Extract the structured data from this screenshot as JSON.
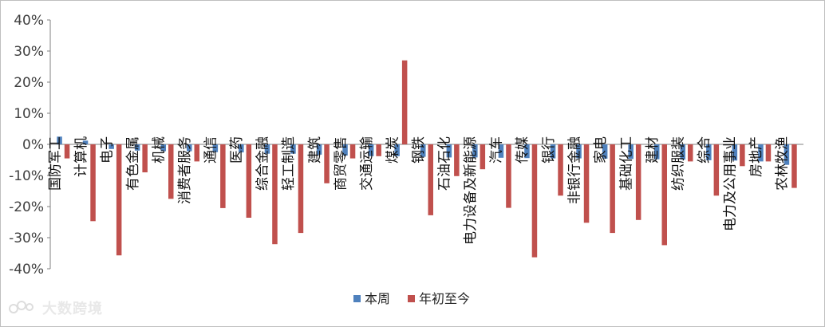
{
  "chart_data": {
    "type": "bar",
    "categories": [
      "国防军工",
      "计算机",
      "电子",
      "有色金属",
      "机械",
      "消费者服务",
      "通信",
      "医药",
      "综合金融",
      "轻工制造",
      "建筑",
      "商贸零售",
      "交通运输",
      "煤炭",
      "钢铁",
      "石油石化",
      "电力设备及新能源",
      "汽车",
      "传媒",
      "银行",
      "非银行金融",
      "家电",
      "基础化工",
      "建材",
      "纺织服装",
      "综合",
      "电力及公用事业",
      "房地产",
      "农林牧渔"
    ],
    "series": [
      {
        "name": "本周",
        "color": "#4f81bd",
        "values": [
          2.5,
          1.2,
          -1.5,
          -2.0,
          -2.2,
          -2.2,
          -2.5,
          -2.6,
          -3.0,
          -3.0,
          -3.3,
          -3.6,
          -3.8,
          -3.8,
          -4.0,
          -4.2,
          -4.2,
          -4.3,
          -4.4,
          -4.5,
          -4.5,
          -4.6,
          -4.7,
          -4.8,
          -4.9,
          -5.1,
          -5.2,
          -5.5,
          -6.6
        ]
      },
      {
        "name": "年初至今",
        "color": "#c0504d",
        "values": [
          -4.5,
          -24.7,
          -35.7,
          -9.0,
          -17.5,
          -5.5,
          -20.5,
          -23.6,
          -32.1,
          -28.5,
          -12.5,
          -4.5,
          -3.8,
          27.0,
          -22.8,
          -10.2,
          -8.0,
          -20.4,
          -36.3,
          -16.5,
          -25.2,
          -28.5,
          -24.3,
          -32.4,
          -5.5,
          -16.5,
          -7.0,
          -5.5,
          -14.0
        ]
      }
    ],
    "yticks": [
      "40%",
      "30%",
      "20%",
      "10%",
      "0%",
      "-10%",
      "-20%",
      "-30%",
      "-40%"
    ],
    "ylim": [
      -40,
      40
    ],
    "grid": false,
    "legend_position": "bottom"
  },
  "watermark": {
    "text": "大数跨境"
  }
}
